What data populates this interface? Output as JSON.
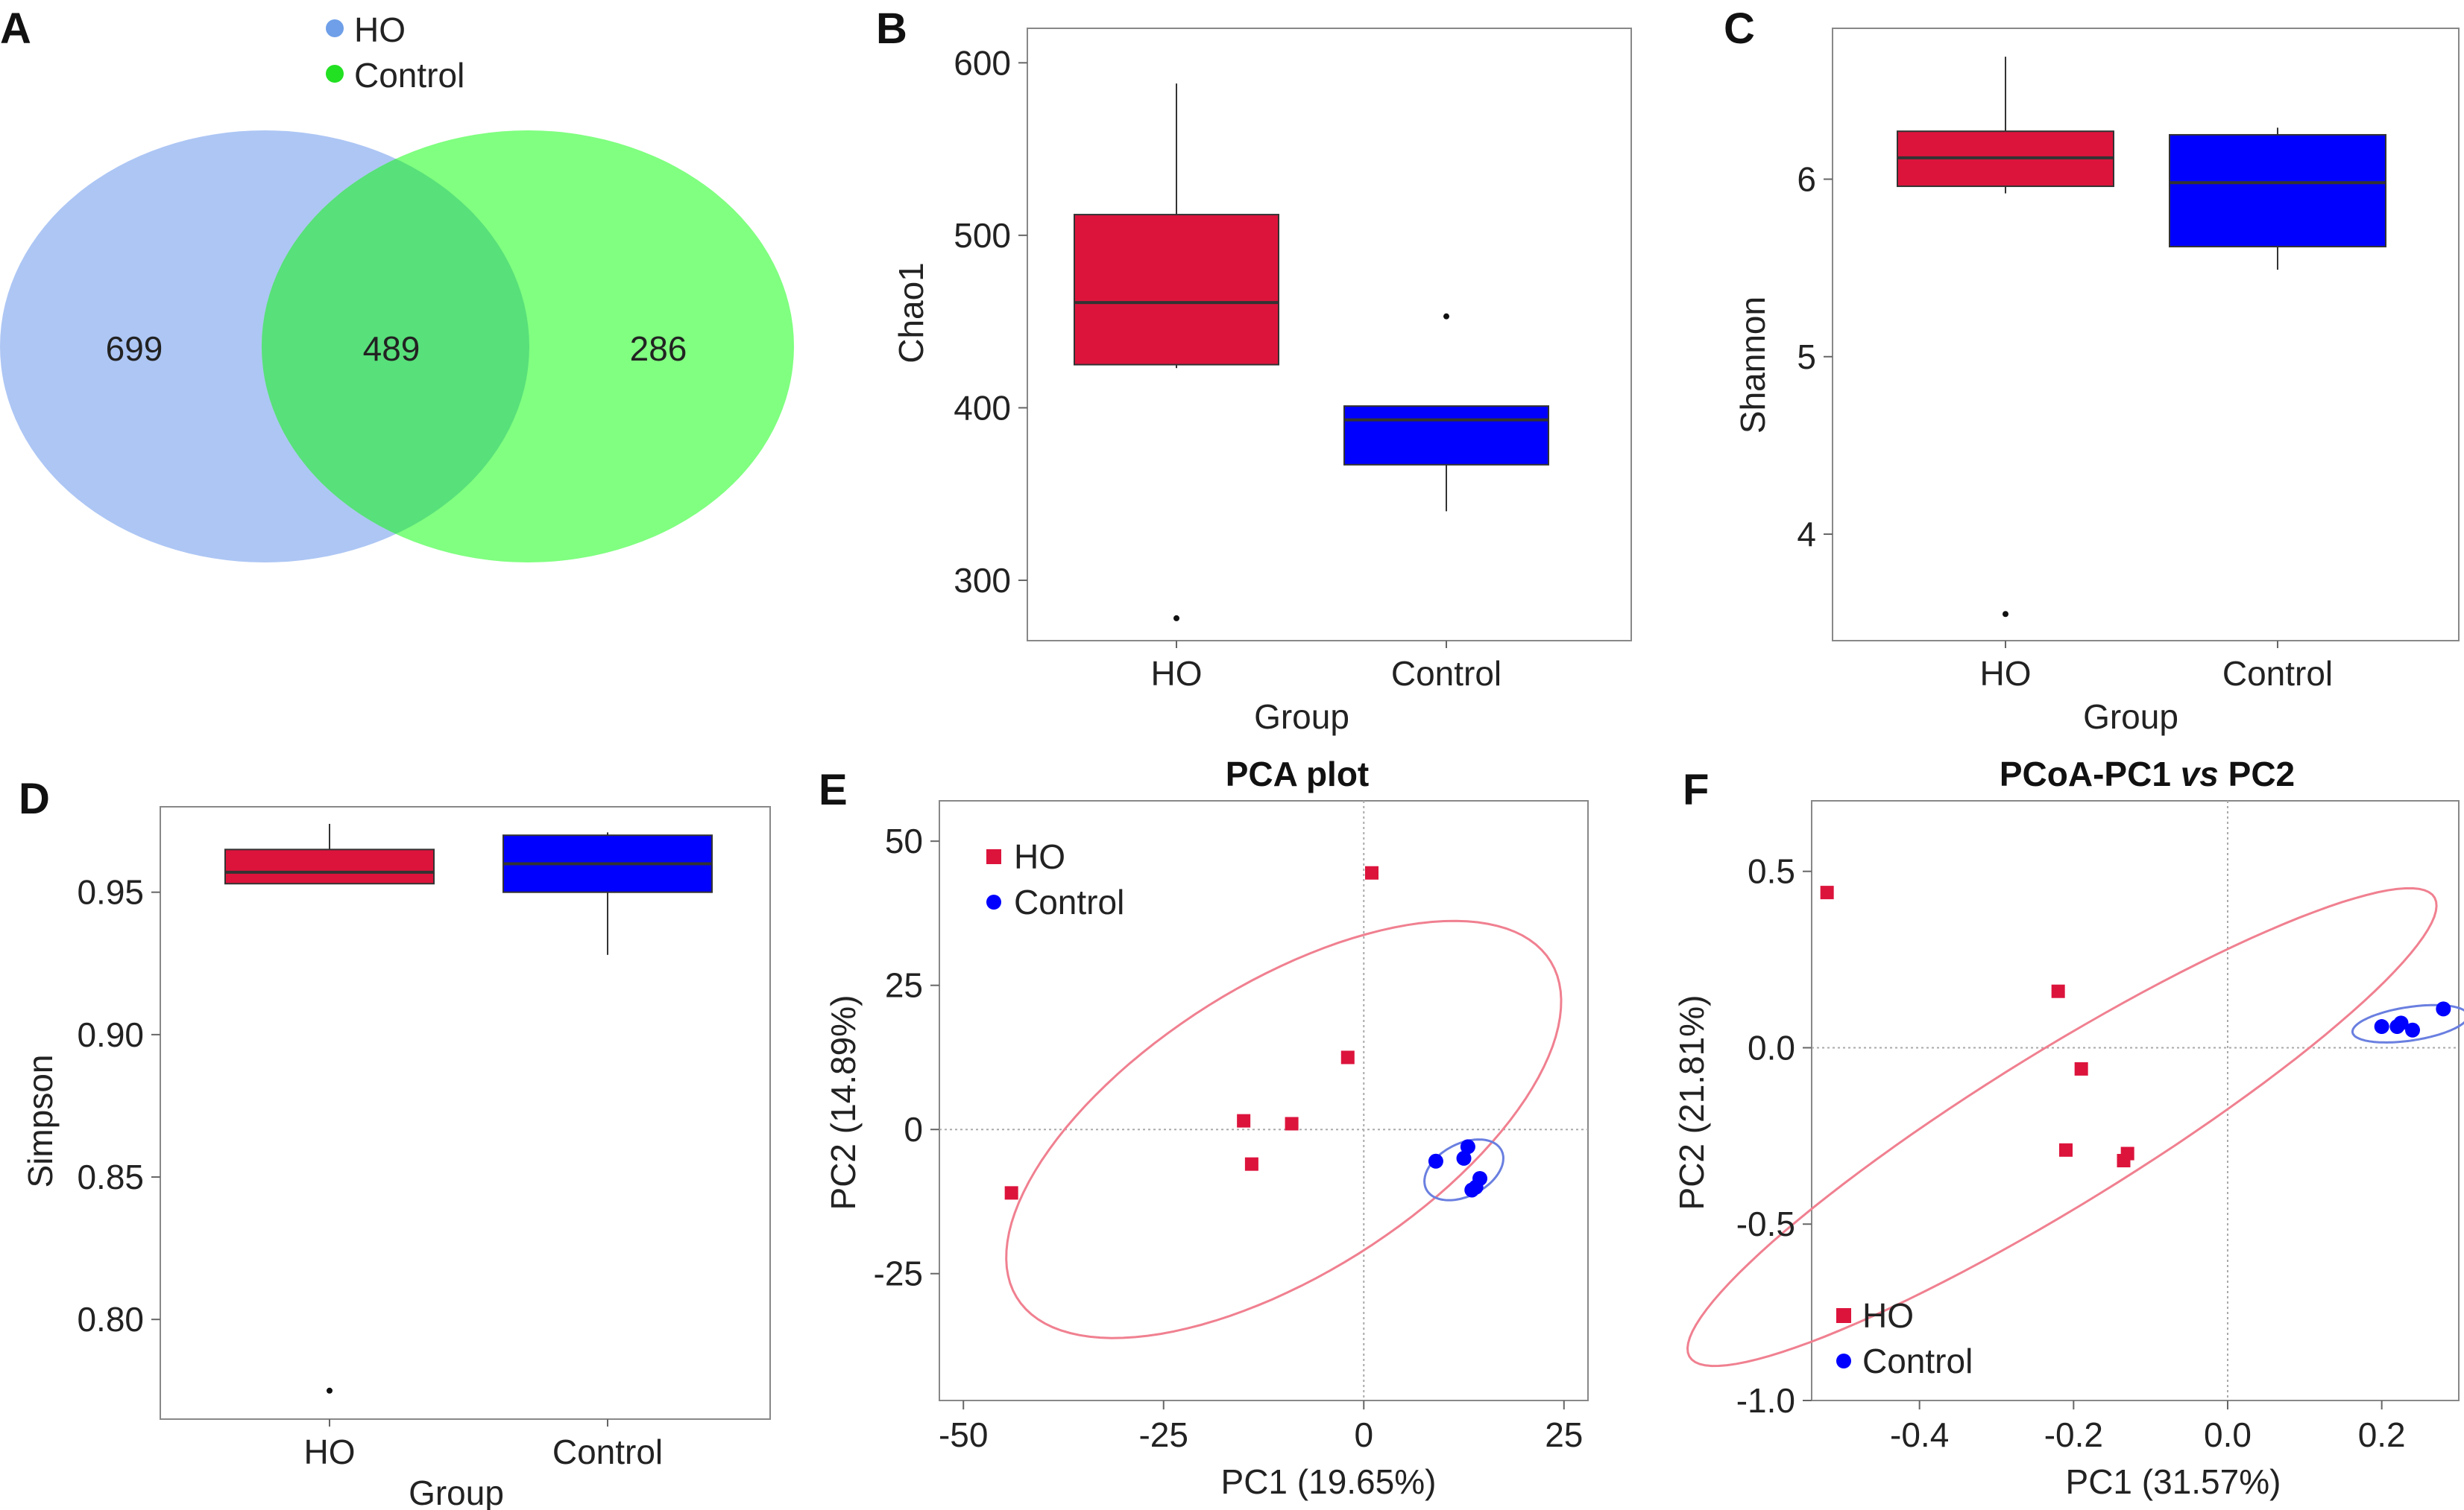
{
  "panels": {
    "A": {
      "letter": "A"
    },
    "B": {
      "letter": "B"
    },
    "C": {
      "letter": "C"
    },
    "D": {
      "letter": "D"
    },
    "E": {
      "letter": "E"
    },
    "F": {
      "letter": "F"
    }
  },
  "colors": {
    "ho": "#dc143c",
    "control": "#0000ff",
    "venn_ho": "#adc6f4",
    "venn_control": "#80ff80",
    "venn_overlap": "#58e07a",
    "ellipse_ho": "#f08090",
    "ellipse_control": "#6a7fe0"
  },
  "chart_data": [
    {
      "panel": "A",
      "type": "venn",
      "sets": [
        {
          "name": "HO",
          "only": 699
        },
        {
          "name": "Control",
          "only": 286
        }
      ],
      "intersection": 489,
      "legend": [
        "HO",
        "Control"
      ],
      "labels": {
        "ho_only": "699",
        "both": "489",
        "control_only": "286"
      }
    },
    {
      "panel": "B",
      "type": "box",
      "categories": [
        "HO",
        "Control"
      ],
      "boxes": [
        {
          "name": "HO",
          "whisker_low": 423,
          "q1": 425,
          "median": 461,
          "q3": 512,
          "whisker_high": 588,
          "outliers": [
            278
          ]
        },
        {
          "name": "Control",
          "whisker_low": 340,
          "q1": 367,
          "median": 393,
          "q3": 401,
          "whisker_high": 401,
          "outliers": [
            453
          ]
        }
      ],
      "xlabel": "Group",
      "ylabel": "Chao1",
      "ylim": [
        265,
        620
      ],
      "yticks": [
        300,
        400,
        500,
        600
      ]
    },
    {
      "panel": "C",
      "type": "box",
      "categories": [
        "HO",
        "Control"
      ],
      "boxes": [
        {
          "name": "HO",
          "whisker_low": 5.92,
          "q1": 5.96,
          "median": 6.12,
          "q3": 6.27,
          "whisker_high": 6.69,
          "outliers": [
            3.55
          ]
        },
        {
          "name": "Control",
          "whisker_low": 5.49,
          "q1": 5.62,
          "median": 5.98,
          "q3": 6.25,
          "whisker_high": 6.29,
          "outliers": []
        }
      ],
      "xlabel": "Group",
      "ylabel": "Shannon",
      "ylim": [
        3.4,
        6.85
      ],
      "yticks": [
        4,
        5,
        6
      ]
    },
    {
      "panel": "D",
      "type": "box",
      "categories": [
        "HO",
        "Control"
      ],
      "boxes": [
        {
          "name": "HO",
          "whisker_low": 0.953,
          "q1": 0.953,
          "median": 0.957,
          "q3": 0.965,
          "whisker_high": 0.974,
          "outliers": [
            0.775
          ]
        },
        {
          "name": "Control",
          "whisker_low": 0.928,
          "q1": 0.95,
          "median": 0.96,
          "q3": 0.97,
          "whisker_high": 0.971,
          "outliers": []
        }
      ],
      "xlabel": "Group",
      "ylabel": "Simpson",
      "ylim": [
        0.765,
        0.98
      ],
      "yticks": [
        0.8,
        0.85,
        0.9,
        0.95
      ],
      "ytick_labels": [
        "0.80",
        "0.85",
        "0.90",
        "0.95"
      ]
    },
    {
      "panel": "E",
      "type": "scatter",
      "title": "PCA plot",
      "xlabel": "PC1 (19.65%)",
      "ylabel": "PC2 (14.89%)",
      "xlim": [
        -53,
        28
      ],
      "ylim": [
        -47,
        57
      ],
      "xticks": [
        -50,
        -25,
        0,
        25
      ],
      "yticks": [
        -25,
        0,
        25,
        50
      ],
      "legend_position": "top-left",
      "series": [
        {
          "name": "HO",
          "marker": "square",
          "points": [
            [
              1,
              44.5
            ],
            [
              -2,
              12.5
            ],
            [
              -15,
              1.5
            ],
            [
              -9,
              1
            ],
            [
              -14,
              -6
            ],
            [
              -44,
              -11
            ]
          ]
        },
        {
          "name": "Control",
          "marker": "circle",
          "points": [
            [
              9,
              -5.5
            ],
            [
              13,
              -3
            ],
            [
              12.5,
              -5
            ],
            [
              14.5,
              -8.5
            ],
            [
              14,
              -10
            ],
            [
              13.5,
              -10.5
            ]
          ]
        }
      ],
      "ellipses": [
        {
          "series": "HO",
          "cx": -10,
          "cy": 0,
          "rx": 45,
          "ry": 22,
          "rotation_deg": 47
        },
        {
          "series": "Control",
          "cx": 12.5,
          "cy": -7,
          "rx": 6,
          "ry": 4,
          "rotation_deg": 50
        }
      ]
    },
    {
      "panel": "F",
      "type": "scatter",
      "title": "PCoA-PC1 vs PC2",
      "title_parts": {
        "pre": "PCoA-PC1 ",
        "vs": "vs",
        "post": " PC2"
      },
      "xlabel": "PC1 (31.57%)",
      "ylabel": "PC2 (21.81%)",
      "xlim": [
        -0.54,
        0.3
      ],
      "ylim": [
        -1.0,
        0.7
      ],
      "xticks": [
        -0.4,
        -0.2,
        0,
        0.2
      ],
      "xtick_labels": [
        "-0.4",
        "-0.2",
        "0.0",
        "0.2"
      ],
      "yticks": [
        -1.0,
        -0.5,
        0,
        0.5
      ],
      "ytick_labels": [
        "-1.0",
        "-0.5",
        "0.0",
        "0.5"
      ],
      "legend_position": "bottom-left",
      "series": [
        {
          "name": "HO",
          "marker": "square",
          "points": [
            [
              -0.52,
              0.44
            ],
            [
              -0.22,
              0.16
            ],
            [
              -0.19,
              -0.06
            ],
            [
              -0.21,
              -0.29
            ],
            [
              -0.13,
              -0.3
            ],
            [
              -0.135,
              -0.32
            ]
          ]
        },
        {
          "name": "Control",
          "marker": "circle",
          "points": [
            [
              0.2,
              0.06
            ],
            [
              0.22,
              0.06
            ],
            [
              0.225,
              0.07
            ],
            [
              0.24,
              0.05
            ],
            [
              0.28,
              0.11
            ]
          ]
        }
      ],
      "ellipses": [
        {
          "series": "HO",
          "cx": -0.215,
          "cy": -0.225,
          "rx": 0.82,
          "ry": 0.15,
          "rotation_deg": 55
        },
        {
          "series": "Control",
          "cx": 0.237,
          "cy": 0.068,
          "rx": 0.08,
          "ry": 0.045,
          "rotation_deg": 25
        }
      ]
    }
  ]
}
